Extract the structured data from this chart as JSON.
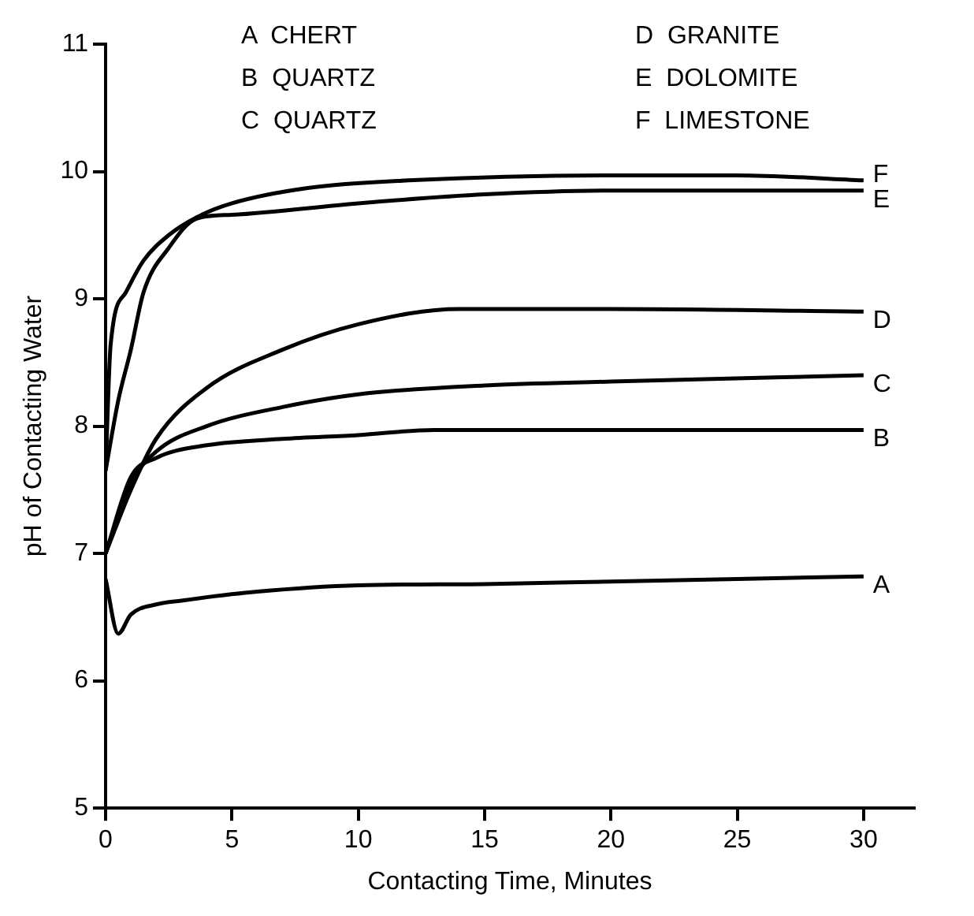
{
  "chart_data": {
    "type": "line",
    "xlabel": "Contacting Time, Minutes",
    "ylabel": "pH of Contacting Water",
    "xlim": [
      0,
      32
    ],
    "xticks": [
      0,
      5,
      10,
      15,
      20,
      25,
      30
    ],
    "ylim": [
      5,
      11
    ],
    "yticks": [
      5,
      6,
      7,
      8,
      9,
      10,
      11
    ],
    "grid": false,
    "legend": false,
    "marker": "none",
    "line_style": "solid",
    "annotations": [
      "A  CHERT",
      "B  QUARTZ",
      "C  QUARTZ",
      "D  GRANITE",
      "E  DOLOMITE",
      "F  LIMESTONE"
    ],
    "series": [
      {
        "name": "A",
        "color": "#000000",
        "x": [
          0,
          0.5,
          1,
          2,
          3,
          6,
          10,
          15,
          20,
          25,
          30
        ],
        "values": [
          6.8,
          6.37,
          6.52,
          6.6,
          6.63,
          6.7,
          6.75,
          6.76,
          6.78,
          6.8,
          6.82
        ]
      },
      {
        "name": "B",
        "color": "#000000",
        "x": [
          0,
          1,
          2,
          4,
          7,
          10,
          13,
          20,
          30
        ],
        "values": [
          7.0,
          7.6,
          7.75,
          7.85,
          7.9,
          7.93,
          7.97,
          7.97,
          7.97
        ]
      },
      {
        "name": "C",
        "color": "#000000",
        "x": [
          0,
          1,
          2,
          4,
          7,
          10,
          15,
          20,
          30
        ],
        "values": [
          7.0,
          7.55,
          7.8,
          8.0,
          8.15,
          8.25,
          8.32,
          8.35,
          8.4
        ]
      },
      {
        "name": "D",
        "color": "#000000",
        "x": [
          0,
          1,
          2,
          4,
          7,
          10,
          14,
          20,
          30
        ],
        "values": [
          7.0,
          7.5,
          7.9,
          8.3,
          8.6,
          8.8,
          8.92,
          8.92,
          8.9
        ]
      },
      {
        "name": "E",
        "color": "#000000",
        "x": [
          0,
          0.5,
          1,
          1.5,
          2.5,
          3.6,
          5,
          10,
          15,
          20,
          30
        ],
        "values": [
          7.65,
          8.2,
          8.6,
          9.05,
          9.4,
          9.63,
          9.66,
          9.75,
          9.82,
          9.85,
          9.85
        ]
      },
      {
        "name": "F",
        "color": "#000000",
        "x": [
          0,
          0.2,
          0.8,
          1.5,
          2.5,
          3.6,
          5,
          8,
          12,
          20,
          25,
          30
        ],
        "values": [
          7.65,
          8.64,
          9.05,
          9.3,
          9.5,
          9.64,
          9.75,
          9.87,
          9.93,
          9.97,
          9.97,
          9.93
        ]
      }
    ]
  }
}
